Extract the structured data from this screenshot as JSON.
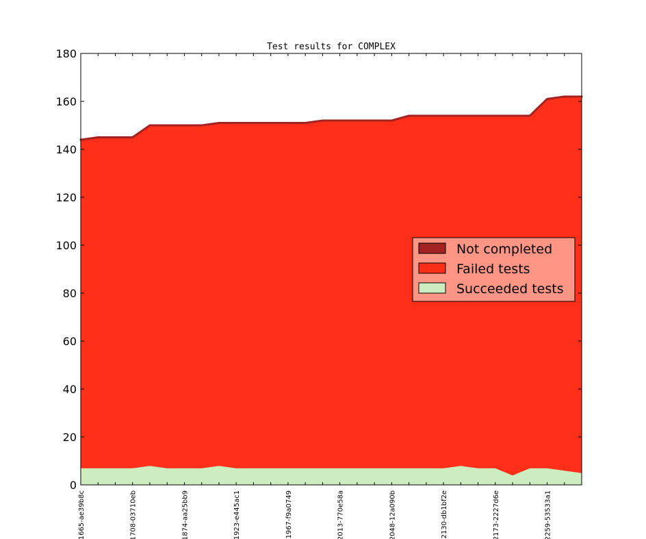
{
  "chart_data": {
    "type": "area",
    "title": "Test results for COMPLEX",
    "xlabel": "",
    "ylabel": "",
    "ylim": [
      0,
      180
    ],
    "yticks": [
      0,
      20,
      40,
      60,
      80,
      100,
      120,
      140,
      160,
      180
    ],
    "grid": false,
    "legend_position": "center-right",
    "x_labels": [
      "1665-ae39b8c",
      "1708-03710eb",
      "1874-aa25bb9",
      "1923-e445ac1",
      "1967-f9a0749",
      "2013-770e58a",
      "2048-12a090b",
      "2130-db1bf2e",
      "2173-2227d6e",
      "2259-53533a1"
    ],
    "label_every": 3,
    "series": [
      {
        "name": "Succeeded tests",
        "color": "#cdedc0",
        "values": [
          7,
          7,
          7,
          7,
          8,
          7,
          7,
          7,
          8,
          7,
          7,
          7,
          7,
          7,
          7,
          7,
          7,
          7,
          7,
          7,
          7,
          7,
          8,
          7,
          7,
          4,
          7,
          7,
          6,
          5
        ]
      },
      {
        "name": "Failed tests",
        "color": "#ff2f1a",
        "values": [
          137,
          138,
          138,
          138,
          142,
          143,
          143,
          143,
          143,
          144,
          144,
          144,
          144,
          144,
          145,
          145,
          145,
          145,
          145,
          147,
          147,
          147,
          146,
          147,
          147,
          150,
          147,
          154,
          156,
          157
        ]
      },
      {
        "name": "Not completed",
        "color": "#a32222",
        "values": [
          0,
          0,
          0,
          0,
          0,
          0,
          0,
          0,
          0,
          0,
          0,
          0,
          0,
          0,
          0,
          0,
          0,
          0,
          0,
          0,
          0,
          0,
          0,
          0,
          0,
          0,
          0,
          0,
          0,
          0
        ]
      }
    ],
    "legend": [
      {
        "label": "Not completed",
        "color": "#a32222"
      },
      {
        "label": "Failed tests",
        "color": "#ff2f1a"
      },
      {
        "label": "Succeeded tests",
        "color": "#cdedc0"
      }
    ],
    "legend_background": "#ff9585"
  }
}
